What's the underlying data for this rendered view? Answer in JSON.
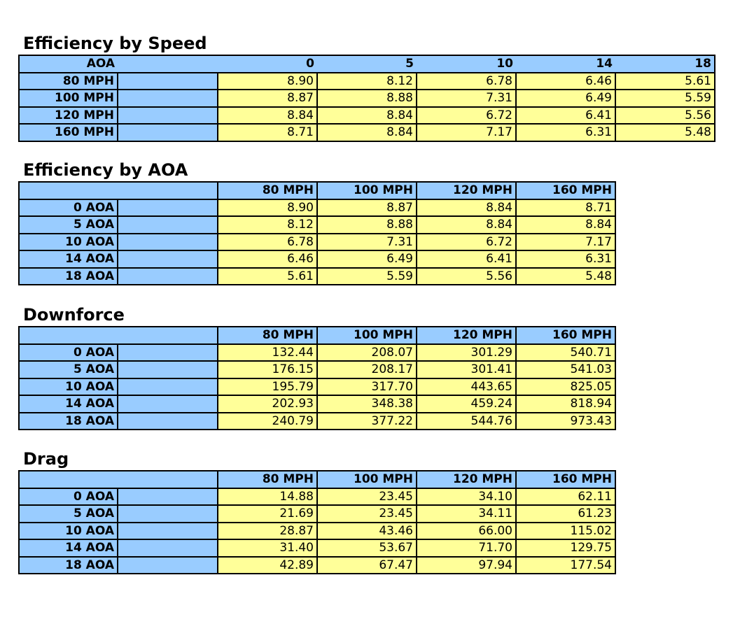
{
  "colors": {
    "header_fill": "#99CCFF",
    "value_fill": "#FFFF99",
    "border": "#000000"
  },
  "tables": [
    {
      "title": "Efficiency by Speed",
      "corner": "AOA",
      "columns": [
        "0",
        "5",
        "10",
        "14",
        "18"
      ],
      "rows": [
        {
          "label": "80 MPH",
          "values": [
            "8.90",
            "8.12",
            "6.78",
            "6.46",
            "5.61"
          ]
        },
        {
          "label": "100 MPH",
          "values": [
            "8.87",
            "8.88",
            "7.31",
            "6.49",
            "5.59"
          ]
        },
        {
          "label": "120 MPH",
          "values": [
            "8.84",
            "8.84",
            "6.72",
            "6.41",
            "5.56"
          ]
        },
        {
          "label": "160 MPH",
          "values": [
            "8.71",
            "8.84",
            "7.17",
            "6.31",
            "5.48"
          ]
        }
      ]
    },
    {
      "title": "Efficiency by AOA",
      "corner": "",
      "columns": [
        "80 MPH",
        "100 MPH",
        "120 MPH",
        "160 MPH"
      ],
      "rows": [
        {
          "label": "0 AOA",
          "values": [
            "8.90",
            "8.87",
            "8.84",
            "8.71"
          ]
        },
        {
          "label": "5 AOA",
          "values": [
            "8.12",
            "8.88",
            "8.84",
            "8.84"
          ]
        },
        {
          "label": "10 AOA",
          "values": [
            "6.78",
            "7.31",
            "6.72",
            "7.17"
          ]
        },
        {
          "label": "14 AOA",
          "values": [
            "6.46",
            "6.49",
            "6.41",
            "6.31"
          ]
        },
        {
          "label": "18 AOA",
          "values": [
            "5.61",
            "5.59",
            "5.56",
            "5.48"
          ]
        }
      ]
    },
    {
      "title": "Downforce",
      "corner": "",
      "columns": [
        "80 MPH",
        "100 MPH",
        "120 MPH",
        "160 MPH"
      ],
      "rows": [
        {
          "label": "0 AOA",
          "values": [
            "132.44",
            "208.07",
            "301.29",
            "540.71"
          ]
        },
        {
          "label": "5 AOA",
          "values": [
            "176.15",
            "208.17",
            "301.41",
            "541.03"
          ]
        },
        {
          "label": "10 AOA",
          "values": [
            "195.79",
            "317.70",
            "443.65",
            "825.05"
          ]
        },
        {
          "label": "14 AOA",
          "values": [
            "202.93",
            "348.38",
            "459.24",
            "818.94"
          ]
        },
        {
          "label": "18 AOA",
          "values": [
            "240.79",
            "377.22",
            "544.76",
            "973.43"
          ]
        }
      ]
    },
    {
      "title": "Drag",
      "corner": "",
      "columns": [
        "80 MPH",
        "100 MPH",
        "120 MPH",
        "160 MPH"
      ],
      "rows": [
        {
          "label": "0 AOA",
          "values": [
            "14.88",
            "23.45",
            "34.10",
            "62.11"
          ]
        },
        {
          "label": "5 AOA",
          "values": [
            "21.69",
            "23.45",
            "34.11",
            "61.23"
          ]
        },
        {
          "label": "10 AOA",
          "values": [
            "28.87",
            "43.46",
            "66.00",
            "115.02"
          ]
        },
        {
          "label": "14 AOA",
          "values": [
            "31.40",
            "53.67",
            "71.70",
            "129.75"
          ]
        },
        {
          "label": "18 AOA",
          "values": [
            "42.89",
            "67.47",
            "97.94",
            "177.54"
          ]
        }
      ]
    }
  ]
}
